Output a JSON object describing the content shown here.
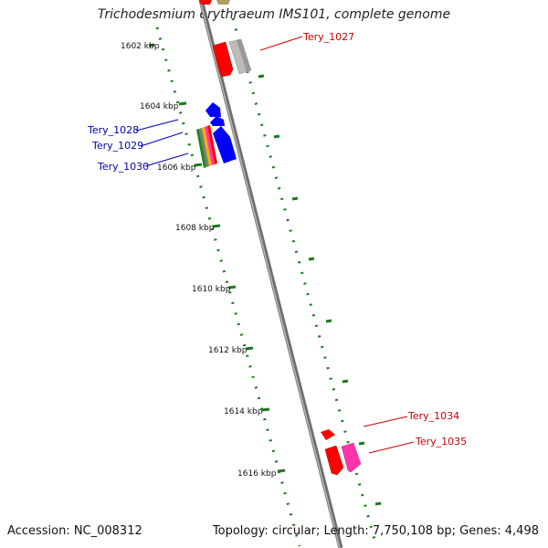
{
  "title": "Trichodesmium erythraeum IMS101, complete genome",
  "footer": {
    "accession": "Accession: NC_008312",
    "summary": "Topology: circular; Length: 7,750,108 bp; Genes: 4,498"
  },
  "ticks": [
    "1602 kbp",
    "1604 kbp",
    "1606 kbp",
    "1608 kbp",
    "1610 kbp",
    "1612 kbp",
    "1614 kbp",
    "1616 kbp"
  ],
  "labels": [
    {
      "text": "Tery_1027",
      "color": "#cc0000"
    },
    {
      "text": "Tery_1028",
      "color": "#0000aa"
    },
    {
      "text": "Tery_1029",
      "color": "#0000aa"
    },
    {
      "text": "Tery_1030",
      "color": "#0000aa"
    },
    {
      "text": "Tery_1034",
      "color": "#cc0000"
    },
    {
      "text": "Tery_1035",
      "color": "#cc0000"
    }
  ],
  "colors": {
    "backbone": "#7f7f7f",
    "tick_dots": "#1a7a1a",
    "forward_gene": "#ff0000",
    "reverse_gene": "#0000ff",
    "pseudo_gene": "#bbbbbb",
    "pink_gene": "#ff33aa"
  }
}
